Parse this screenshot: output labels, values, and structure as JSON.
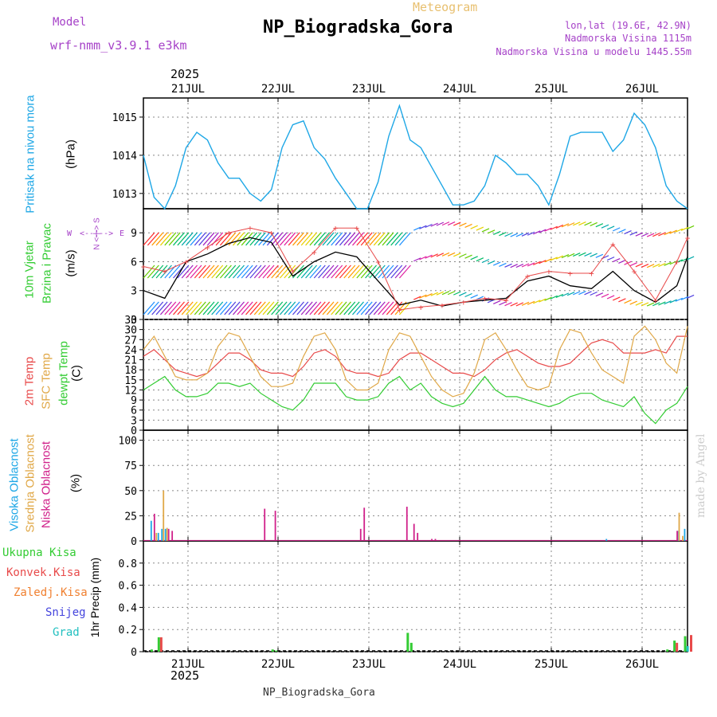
{
  "header": {
    "model_label": "Model",
    "model_name": "wrf-nmm_v3.9.1  e3km",
    "meteogram_label": "Meteogram",
    "station": "NP_Biogradska_Gora",
    "lonlat": "lon,lat (19.6E, 42.9N)",
    "elevation": "Nadmorska Visina 1115m",
    "model_elevation": "Nadmorska Visina u modelu 1445.55m",
    "year_top": "2025",
    "year_bottom": "2025",
    "footer": "NP_Biogradska_Gora",
    "credit": "made by Angel"
  },
  "days": [
    "21JUL",
    "22JUL",
    "23JUL",
    "24JUL",
    "25JUL",
    "26JUL"
  ],
  "panel_labels": {
    "pressure": {
      "line1": "Pritisak na nivou mora",
      "unit": "(hPa)"
    },
    "wind": {
      "line1": "10m Vjetar",
      "line2": "Brzina i Pravac",
      "unit": "(m/s)",
      "compass_ns": "N <-|-> S",
      "compass_w": "W",
      "compass_e": "E"
    },
    "temp": {
      "line1": "2m Temp",
      "line2": "SFC Temp",
      "line3": "dewpt Temp",
      "unit": "(C)"
    },
    "cloud": {
      "line1": "Visoka Oblacnost",
      "line2": "Srednja Oblacnost",
      "line3": "Niska Oblacnost",
      "unit": "(%)"
    },
    "precip": {
      "l1": "Ukupna Kisa",
      "l2": "Konvek.Kisa",
      "l3": "Zaledj.Kisa",
      "l4": "Snijeg",
      "l5": "Grad",
      "unit": "1hr Precip (mm)"
    }
  },
  "colors": {
    "pressure": "#1ea7e6",
    "temp2m": "#e84a4a",
    "sfc": "#e0a848",
    "dew": "#33cc33",
    "high": "#1ea7e6",
    "mid": "#e0a848",
    "low": "#d0208a",
    "blue": "#4444dd",
    "green": "#33cc33",
    "red": "#e84a4a",
    "orange": "#f08030",
    "cyan": "#22c0c0",
    "purple": "#a642c8"
  },
  "chart_data": [
    {
      "type": "line",
      "title": "Pritisak na nivou mora",
      "ylabel": "(hPa)",
      "ylim": [
        1012.6,
        1015.5
      ],
      "yticks": [
        1013,
        1014,
        1015
      ],
      "x_hours": [
        0,
        3,
        6,
        9,
        12,
        15,
        18,
        21,
        24,
        27,
        30,
        33,
        36,
        39,
        42,
        45,
        48,
        51,
        54,
        57,
        60,
        63,
        66,
        69,
        72,
        75,
        78,
        81,
        84,
        87,
        90,
        93,
        96,
        99,
        102,
        105,
        108,
        111,
        114,
        117,
        120,
        123,
        126,
        129,
        132,
        135,
        138,
        141
      ],
      "values": [
        1014.0,
        1012.9,
        1012.6,
        1013.2,
        1014.2,
        1014.6,
        1014.4,
        1013.8,
        1013.4,
        1013.4,
        1013.0,
        1012.8,
        1013.1,
        1014.2,
        1014.8,
        1014.9,
        1014.2,
        1013.9,
        1013.4,
        1013.0,
        1012.6,
        1012.6,
        1013.3,
        1014.5,
        1015.3,
        1014.4,
        1014.2,
        1013.7,
        1013.2,
        1012.7,
        1012.7,
        1012.8,
        1013.2,
        1014.0,
        1013.8,
        1013.5,
        1013.5,
        1013.2,
        1012.7,
        1013.5,
        1014.5,
        1014.6,
        1014.6,
        1014.6,
        1014.1,
        1014.4,
        1015.1,
        1014.8
      ],
      "extra_points": [
        [
          144,
          1014.2
        ],
        [
          147,
          1013.2
        ],
        [
          150,
          1012.8
        ],
        [
          153,
          1012.6
        ]
      ]
    },
    {
      "type": "line",
      "title": "10m Vjetar Brzina i Pravac",
      "ylabel": "(m/s)",
      "ylim": [
        0,
        11.5
      ],
      "yticks": [
        0,
        3,
        6,
        9
      ],
      "x_hours": [
        0,
        6,
        12,
        18,
        24,
        30,
        36,
        42,
        48,
        54,
        60,
        66,
        72,
        78,
        84,
        90,
        96,
        102,
        108,
        114,
        120,
        126,
        132,
        138,
        144,
        150,
        153
      ],
      "speed": [
        3.0,
        2.2,
        6.0,
        6.8,
        7.9,
        8.5,
        8.0,
        4.5,
        6.0,
        7.0,
        6.5,
        4.0,
        1.5,
        2.0,
        1.4,
        1.8,
        2.0,
        2.2,
        4.0,
        4.5,
        3.5,
        3.2,
        5.0,
        3.0,
        1.8,
        3.5,
        6.5
      ],
      "gust": [
        5.5,
        5.0,
        6.0,
        7.5,
        9.0,
        9.5,
        9.0,
        5.0,
        7.0,
        9.5,
        9.5,
        6.0,
        1.0,
        1.3,
        1.5,
        1.8,
        2.2,
        2.0,
        4.5,
        5.0,
        4.8,
        4.8,
        7.8,
        5.0,
        2.0,
        6.0,
        8.5
      ],
      "gust_marker": "+",
      "speed_color": "#000000",
      "gust_color": "#e84a4a"
    },
    {
      "type": "line",
      "title": "Temperature",
      "ylabel": "(C)",
      "ylim": [
        0,
        33
      ],
      "yticks": [
        0,
        3,
        6,
        9,
        12,
        15,
        18,
        21,
        24,
        27,
        30,
        33
      ],
      "x_hours": [
        0,
        3,
        6,
        9,
        12,
        15,
        18,
        21,
        24,
        27,
        30,
        33,
        36,
        39,
        42,
        45,
        48,
        51,
        54,
        57,
        60,
        63,
        66,
        69,
        72,
        75,
        78,
        81,
        84,
        87,
        90,
        93,
        96,
        99,
        102,
        105,
        108,
        111,
        114,
        117,
        120,
        123,
        126,
        129,
        132,
        135,
        138,
        141,
        144,
        147,
        150,
        153
      ],
      "series": [
        {
          "name": "2m Temp",
          "values": [
            22,
            24,
            21,
            18,
            17,
            16,
            17,
            20,
            23,
            23,
            21,
            18,
            17,
            17,
            16,
            19,
            23,
            24,
            22,
            18,
            17,
            17,
            16,
            17,
            21,
            23,
            23,
            21,
            19,
            17,
            17,
            16,
            18,
            21,
            23,
            24,
            22,
            20,
            19,
            19,
            20,
            23,
            26,
            27,
            26,
            23,
            23,
            23,
            24,
            23,
            28,
            28
          ]
        },
        {
          "name": "SFC Temp",
          "values": [
            24,
            28,
            22,
            16,
            15,
            15,
            17,
            25,
            29,
            28,
            22,
            16,
            13,
            13,
            14,
            22,
            28,
            29,
            24,
            15,
            12,
            12,
            14,
            24,
            29,
            28,
            22,
            16,
            12,
            10,
            11,
            17,
            27,
            29,
            24,
            18,
            13,
            12,
            13,
            24,
            30,
            29,
            23,
            18,
            16,
            14,
            28,
            31,
            27,
            20,
            17,
            31
          ]
        },
        {
          "name": "dewpt Temp",
          "values": [
            12,
            14,
            16,
            12,
            10,
            10,
            11,
            14,
            14,
            13,
            14,
            11,
            9,
            7,
            6,
            9,
            14,
            14,
            14,
            10,
            9,
            9,
            10,
            14,
            16,
            12,
            14,
            10,
            8,
            7,
            8,
            12,
            16,
            12,
            10,
            10,
            9,
            8,
            7,
            8,
            10,
            11,
            11,
            9,
            8,
            7,
            10,
            5,
            2,
            6,
            8,
            13
          ]
        }
      ]
    },
    {
      "type": "bar",
      "title": "Oblacnost",
      "ylabel": "(%)",
      "ylim": [
        0,
        110
      ],
      "yticks": [
        0,
        25,
        50,
        75,
        100
      ],
      "series": [
        {
          "name": "Visoka Oblacnost",
          "points": [
            [
              2,
              20
            ],
            [
              4,
              8
            ],
            [
              5,
              12
            ],
            [
              6,
              12
            ],
            [
              130,
              2
            ],
            [
              150,
              10
            ],
            [
              152,
              12
            ]
          ]
        },
        {
          "name": "Srednja Oblacnost",
          "points": [
            [
              3,
              8
            ],
            [
              5,
              50
            ],
            [
              6,
              13
            ],
            [
              150,
              28
            ],
            [
              151,
              5
            ]
          ]
        },
        {
          "name": "Niska Oblacnost",
          "points": [
            [
              2,
              27
            ],
            [
              6,
              12
            ],
            [
              7,
              10
            ],
            [
              33,
              32
            ],
            [
              36,
              30
            ],
            [
              60,
              12
            ],
            [
              61,
              33
            ],
            [
              73,
              34
            ],
            [
              75,
              17
            ],
            [
              76,
              8
            ],
            [
              80,
              2
            ],
            [
              81,
              2
            ],
            [
              149,
              10
            ]
          ]
        }
      ]
    },
    {
      "type": "bar",
      "title": "1hr Precip",
      "ylabel": "1hr Precip (mm)",
      "ylim": [
        0,
        1.0
      ],
      "yticks": [
        0,
        0.2,
        0.4,
        0.6,
        0.8
      ],
      "series": [
        {
          "name": "Ukupna Kisa",
          "points": [
            [
              2,
              0.02
            ],
            [
              4,
              0.13
            ],
            [
              36,
              0.02
            ],
            [
              37,
              0.01
            ],
            [
              74,
              0.17
            ],
            [
              75,
              0.08
            ],
            [
              147,
              0.02
            ],
            [
              149,
              0.1
            ],
            [
              152,
              0.14
            ]
          ]
        },
        {
          "name": "Konvek.Kisa",
          "points": [
            [
              4,
              0.13
            ],
            [
              149,
              0.08
            ],
            [
              153,
              0.15
            ]
          ]
        },
        {
          "name": "Zaledj.Kisa",
          "points": []
        },
        {
          "name": "Snijeg",
          "points": []
        },
        {
          "name": "Grad",
          "points": [
            [
              150,
              0.05
            ]
          ]
        }
      ]
    }
  ]
}
